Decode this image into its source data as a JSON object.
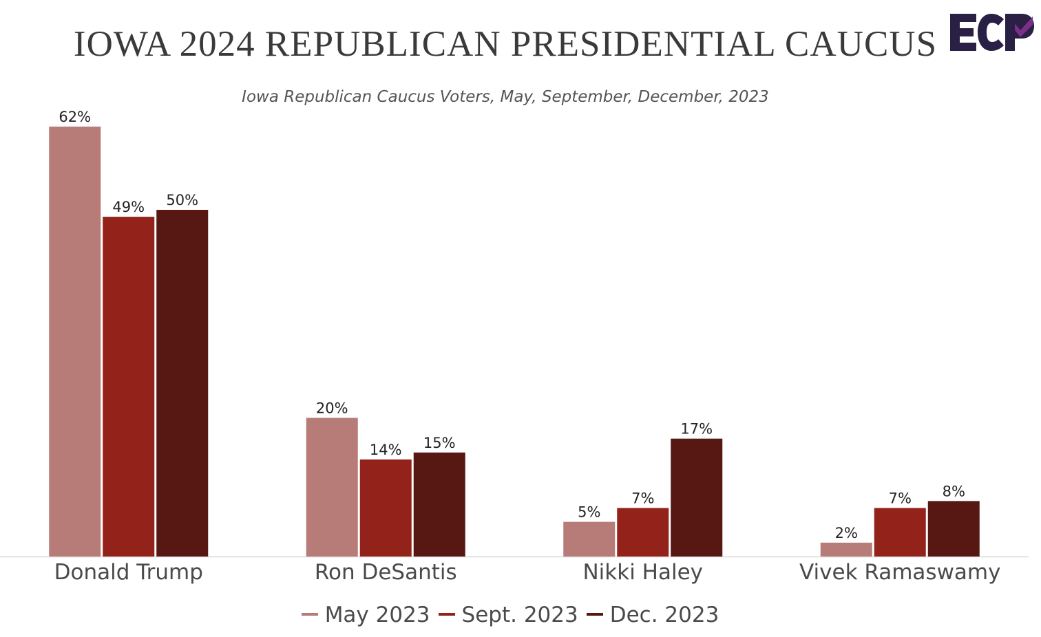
{
  "title": "IOWA 2024 REPUBLICAN PRESIDENTIAL CAUCUS",
  "subtitle": "Iowa Republican Caucus Voters, May, September, December, 2023",
  "logo": {
    "text": "ECP",
    "primary_color": "#2a1f44",
    "accent_color": "#7b2f86"
  },
  "colors": {
    "axis": "#d9d9d9",
    "label": "#222222",
    "category": "#4a4a4a"
  },
  "chart_data": {
    "type": "bar",
    "categories": [
      "Donald Trump",
      "Ron DeSantis",
      "Nikki Haley",
      "Vivek Ramaswamy"
    ],
    "series": [
      {
        "name": "May 2023",
        "color": "#b77b78",
        "values": [
          62,
          20,
          5,
          2
        ]
      },
      {
        "name": "Sept. 2023",
        "color": "#93221b",
        "values": [
          49,
          14,
          7,
          7
        ]
      },
      {
        "name": "Dec. 2023",
        "color": "#571712",
        "values": [
          50,
          15,
          17,
          8
        ]
      }
    ],
    "value_suffix": "%",
    "ylim": [
      0,
      63
    ],
    "grid": false,
    "legend_position": "bottom"
  }
}
